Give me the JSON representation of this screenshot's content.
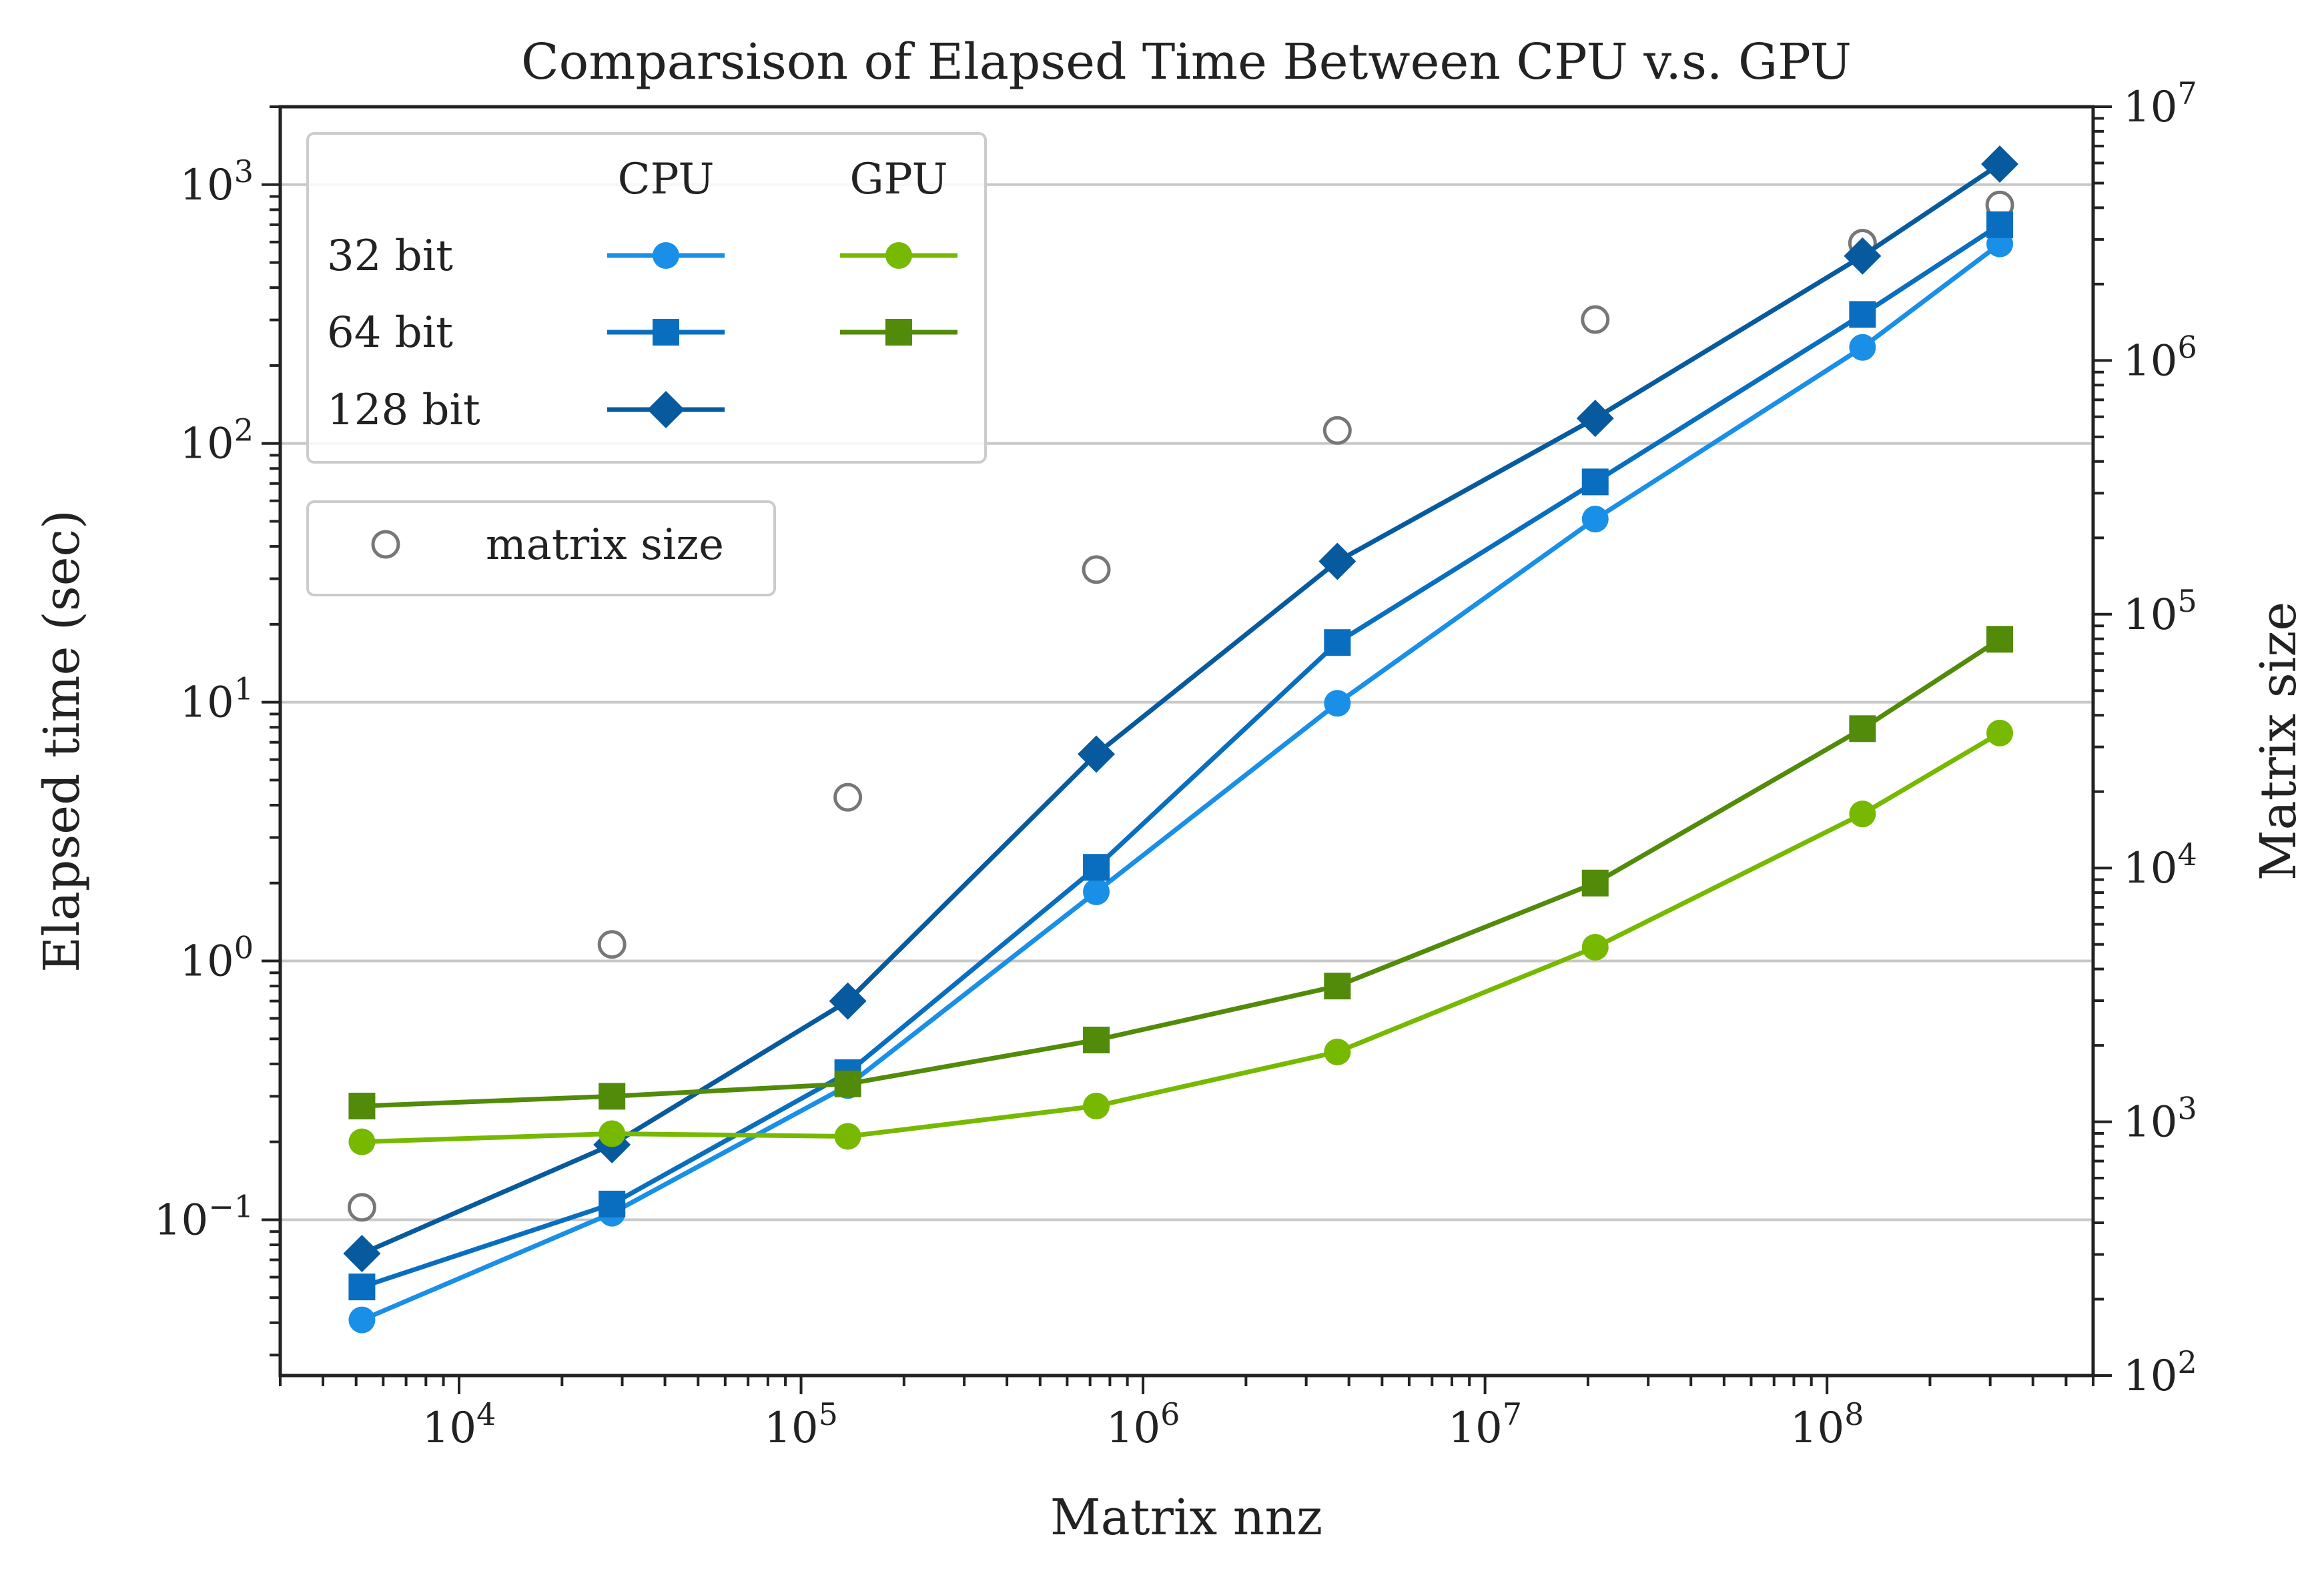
{
  "chart_data": {
    "type": "line",
    "title": "Comparsison of Elapsed Time Between CPU v.s. GPU",
    "xlabel": "Matrix nnz",
    "ylabel": "Elapsed time (sec)",
    "y2label": "Matrix size",
    "xscale": "log",
    "yscale": "log",
    "y2scale": "log",
    "xlim": [
      3000,
      600000000
    ],
    "ylim": [
      0.025,
      2000
    ],
    "y2lim": [
      100,
      10000000
    ],
    "xticks": [
      10000,
      100000,
      1000000,
      10000000,
      100000000
    ],
    "xtick_labels": [
      {
        "base": "10",
        "exp": "4"
      },
      {
        "base": "10",
        "exp": "5"
      },
      {
        "base": "10",
        "exp": "6"
      },
      {
        "base": "10",
        "exp": "7"
      },
      {
        "base": "10",
        "exp": "8"
      }
    ],
    "yticks": [
      0.1,
      1,
      10,
      100,
      1000
    ],
    "ytick_labels": [
      {
        "base": "10",
        "exp": "−1"
      },
      {
        "base": "10",
        "exp": "0"
      },
      {
        "base": "10",
        "exp": "1"
      },
      {
        "base": "10",
        "exp": "2"
      },
      {
        "base": "10",
        "exp": "3"
      }
    ],
    "y2ticks": [
      100,
      1000,
      10000,
      100000,
      1000000,
      10000000
    ],
    "y2tick_labels": [
      {
        "base": "10",
        "exp": "2"
      },
      {
        "base": "10",
        "exp": "3"
      },
      {
        "base": "10",
        "exp": "4"
      },
      {
        "base": "10",
        "exp": "5"
      },
      {
        "base": "10",
        "exp": "6"
      },
      {
        "base": "10",
        "exp": "7"
      }
    ],
    "grid": "horizontal",
    "x": [
      5200,
      28000,
      137000,
      730000,
      3700000,
      21000000,
      127000000,
      320000000
    ],
    "series": [
      {
        "device": "CPU",
        "precision": "32 bit",
        "marker": "circle",
        "color": "#1a8fe8",
        "values": [
          0.041,
          0.106,
          0.33,
          1.85,
          9.9,
          51,
          235,
          590
        ]
      },
      {
        "device": "CPU",
        "precision": "64 bit",
        "marker": "square",
        "color": "#0a6ec0",
        "values": [
          0.055,
          0.115,
          0.37,
          2.3,
          17,
          71,
          315,
          700
        ]
      },
      {
        "device": "CPU",
        "precision": "128 bit",
        "marker": "diamond",
        "color": "#085a9e",
        "values": [
          0.074,
          0.195,
          0.7,
          6.3,
          35,
          125,
          530,
          1200
        ]
      },
      {
        "device": "GPU",
        "precision": "32 bit",
        "marker": "circle",
        "color": "#76b900",
        "values": [
          0.2,
          0.215,
          0.21,
          0.275,
          0.445,
          1.13,
          3.7,
          7.6
        ]
      },
      {
        "device": "GPU",
        "precision": "64 bit",
        "marker": "square",
        "color": "#528a0a",
        "values": [
          0.275,
          0.3,
          0.335,
          0.495,
          0.8,
          2.0,
          7.9,
          17.5
        ]
      }
    ],
    "matrix_size": {
      "name": "matrix size",
      "marker": "open-circle",
      "color": "#777777",
      "axis": "right",
      "values": [
        460,
        5000,
        19000,
        150000,
        530000,
        1450000,
        2900000,
        4100000
      ]
    },
    "legend": {
      "placement": "top-left",
      "columns": [
        "CPU",
        "GPU"
      ],
      "rows": [
        "32 bit",
        "64 bit",
        "128 bit"
      ],
      "secondary_label": "matrix size"
    }
  }
}
